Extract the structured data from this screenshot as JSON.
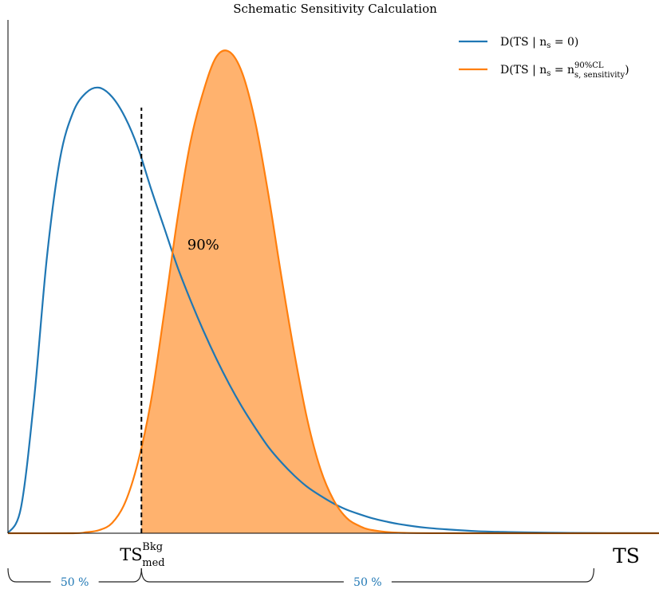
{
  "chart_data": {
    "type": "line",
    "title": "Schematic Sensitivity Calculation",
    "xlabel": "TS",
    "ylabel": "",
    "grid": false,
    "legend_position": "top-right",
    "xlim": [
      0,
      10
    ],
    "ylim": [
      0,
      1.0
    ],
    "series": [
      {
        "name": "D(TS | n_s = 0)",
        "color": "#1f77b4",
        "x": [
          0.0,
          0.2,
          0.4,
          0.6,
          0.8,
          1.0,
          1.2,
          1.4,
          1.6,
          1.8,
          2.0,
          2.2,
          2.4,
          2.6,
          2.8,
          3.0,
          3.2,
          3.4,
          3.6,
          3.8,
          4.0,
          4.2,
          4.4,
          4.6,
          4.8,
          5.0,
          5.2,
          5.4,
          5.6,
          5.8,
          6.0,
          6.4,
          6.8,
          7.2,
          7.6,
          8.0,
          8.5,
          9.0,
          10.0
        ],
        "y": [
          0.0,
          0.05,
          0.26,
          0.54,
          0.73,
          0.82,
          0.858,
          0.868,
          0.85,
          0.81,
          0.75,
          0.67,
          0.595,
          0.52,
          0.455,
          0.395,
          0.34,
          0.29,
          0.245,
          0.205,
          0.168,
          0.138,
          0.112,
          0.09,
          0.073,
          0.058,
          0.046,
          0.037,
          0.029,
          0.023,
          0.018,
          0.011,
          0.007,
          0.004,
          0.0025,
          0.0015,
          0.0008,
          0.0004,
          0.0001
        ]
      },
      {
        "name": "D(TS | n_s = n_s, sensitivity ^90%CL)",
        "color": "#ff7f0e",
        "x": [
          0.0,
          1.0,
          1.2,
          1.4,
          1.6,
          1.8,
          2.0,
          2.2,
          2.4,
          2.6,
          2.8,
          3.0,
          3.2,
          3.4,
          3.6,
          3.8,
          4.0,
          4.2,
          4.4,
          4.6,
          4.8,
          5.0,
          5.2,
          5.4,
          5.6,
          6.0,
          7.0,
          10.0
        ],
        "y": [
          0.0,
          0.0,
          0.002,
          0.006,
          0.02,
          0.06,
          0.14,
          0.26,
          0.43,
          0.61,
          0.76,
          0.86,
          0.928,
          0.938,
          0.896,
          0.8,
          0.66,
          0.5,
          0.35,
          0.22,
          0.125,
          0.065,
          0.03,
          0.014,
          0.006,
          0.001,
          0.0,
          0.0
        ]
      }
    ],
    "shaded_region": {
      "series": 1,
      "from_x": 2.05,
      "label": "90%"
    },
    "vertical_line": {
      "x": 2.05,
      "style": "dashed",
      "ymax": 1.0,
      "label_base": "TS",
      "label_sup": "Bkg",
      "label_sub": "med"
    },
    "braces": [
      {
        "from_x": 0.0,
        "to_x": 2.05,
        "label": "50 %"
      },
      {
        "from_x": 2.05,
        "to_x": 9.0,
        "label": "50 %"
      }
    ],
    "legend": [
      {
        "base": "D(TS | n",
        "sub": "s",
        "tail": " = 0)"
      },
      {
        "base": "D(TS | n",
        "sub": "s",
        "tail": " = n",
        "sub2": "s, sensitivity",
        "sup2": "90%CL",
        "end": ")"
      }
    ]
  }
}
